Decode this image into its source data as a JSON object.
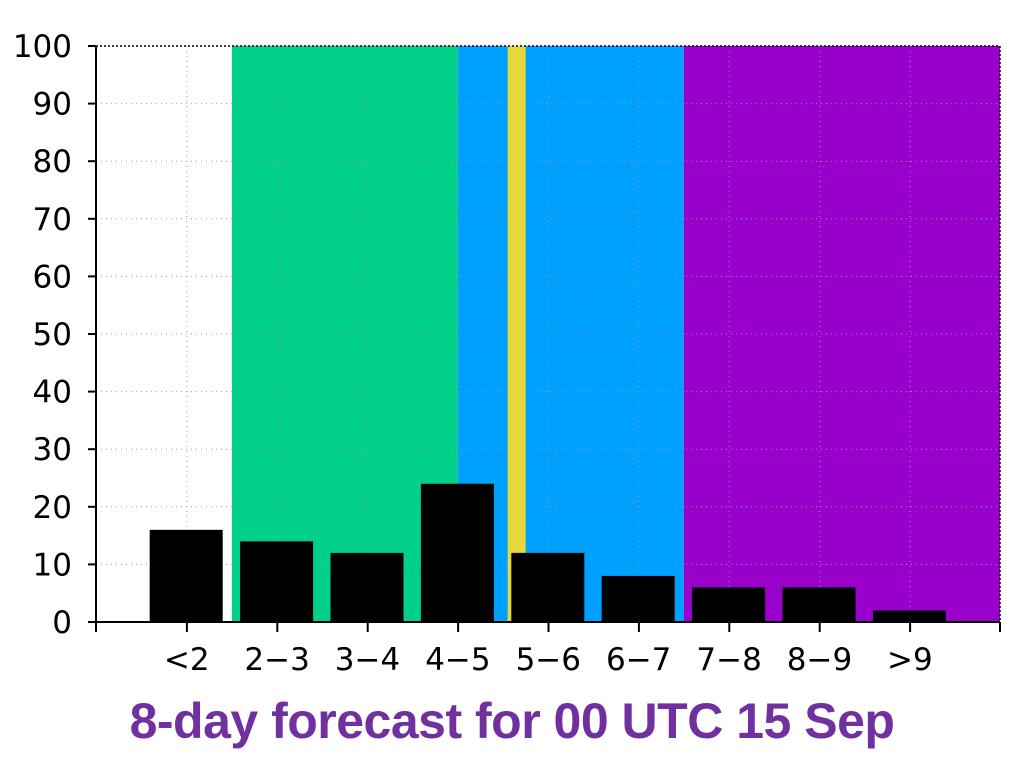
{
  "caption": "8-day forecast for 00 UTC 15 Sep",
  "colors": {
    "caption": "#7030a0",
    "bar": "#000000",
    "marker": "#e6d83a",
    "band_white": "#ffffff",
    "band_green": "#00d08a",
    "band_blue": "#00a0ff",
    "band_purple": "#9900cc"
  },
  "chart_data": {
    "type": "bar",
    "title": "",
    "xlabel": "",
    "ylabel": "",
    "categories": [
      "<2",
      "2−3",
      "3−4",
      "4−5",
      "5−6",
      "6−7",
      "7−8",
      "8−9",
      ">9"
    ],
    "values": [
      16,
      14,
      12,
      24,
      12,
      8,
      6,
      6,
      2
    ],
    "ylim": [
      0,
      100
    ],
    "yticks": [
      "0",
      "10",
      "20",
      "30",
      "40",
      "50",
      "60",
      "70",
      "80",
      "90",
      "100"
    ],
    "grid": true,
    "background_bands": [
      {
        "from_index": 0,
        "to_index": 1,
        "color": "#ffffff"
      },
      {
        "from_index": 1,
        "to_index": 3.5,
        "color": "#00d08a"
      },
      {
        "from_index": 3.5,
        "to_index": 6,
        "color": "#00a0ff"
      },
      {
        "from_index": 6,
        "to_index": 9,
        "color": "#9900cc"
      }
    ],
    "marker_line": {
      "at_index": 4.15,
      "color": "#e6d83a"
    }
  }
}
